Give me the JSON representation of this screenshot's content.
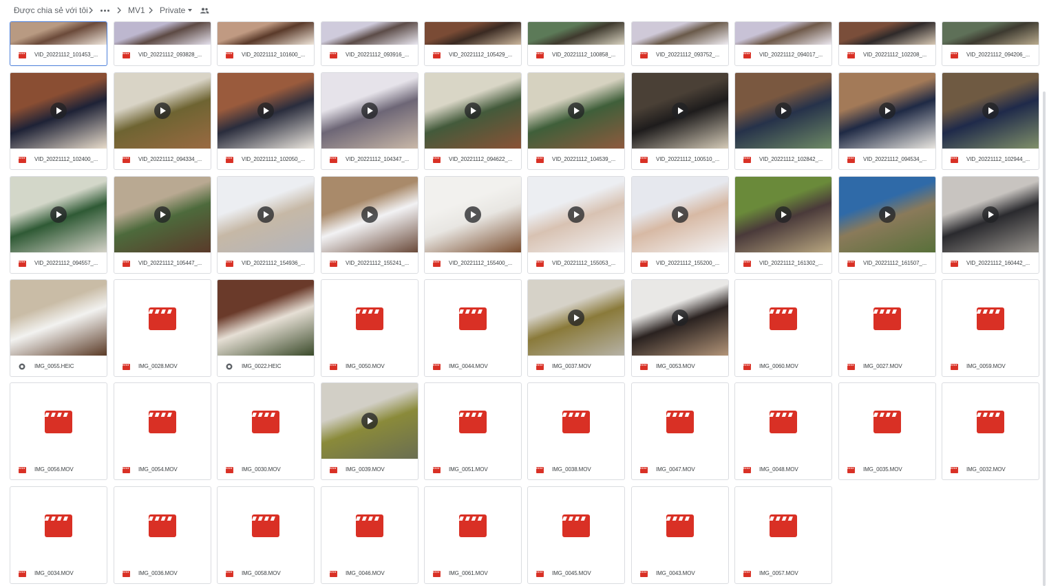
{
  "breadcrumb": {
    "shared": "Được chia sẻ với tôi",
    "folder1": "MV1",
    "folder2": "Private"
  },
  "rows": [
    [
      {
        "name": "VID_20221112_101453_...",
        "type": "video",
        "thumb": [
          "#b89a82",
          "#6b4a3a",
          "#f0e7dd"
        ],
        "selected": true
      },
      {
        "name": "VID_20221112_093828_...",
        "type": "video",
        "thumb": [
          "#bdb7cf",
          "#5d4a44",
          "#e6e2ee"
        ]
      },
      {
        "name": "VID_20221112_101600_...",
        "type": "video",
        "thumb": [
          "#c09a82",
          "#5a3a2a",
          "#f0e6da"
        ]
      },
      {
        "name": "VID_20221112_093916_...",
        "type": "video",
        "thumb": [
          "#cfcbdc",
          "#5c4c48",
          "#ebe9f2"
        ]
      },
      {
        "name": "VID_20221112_105429_...",
        "type": "video",
        "thumb": [
          "#7a4b35",
          "#3a2a22",
          "#cbb69c"
        ]
      },
      {
        "name": "VID_20221112_100858_...",
        "type": "video",
        "thumb": [
          "#5c7a58",
          "#3f3a2e",
          "#d8d2c0"
        ]
      },
      {
        "name": "VID_20221112_093752_...",
        "type": "video",
        "thumb": [
          "#cfc9d8",
          "#6a5a4a",
          "#f1eef4"
        ]
      },
      {
        "name": "VID_20221112_094017_...",
        "type": "video",
        "thumb": [
          "#c8c2d6",
          "#6f5a4a",
          "#ece8f0"
        ]
      },
      {
        "name": "VID_20221112_102208_...",
        "type": "video",
        "thumb": [
          "#7a4e3a",
          "#2f2a2a",
          "#d7c8b4"
        ]
      },
      {
        "name": "VID_20221112_094206_...",
        "type": "video",
        "thumb": [
          "#5e7058",
          "#3d3a30",
          "#b9ab8e"
        ]
      }
    ],
    [
      {
        "name": "VID_20221112_102400_...",
        "type": "video",
        "thumb": [
          "#8a4e33",
          "#1e2236",
          "#e8dccb"
        ]
      },
      {
        "name": "VID_20221112_094334_...",
        "type": "video",
        "thumb": [
          "#d9d4c6",
          "#6e6432",
          "#9a6a42"
        ]
      },
      {
        "name": "VID_20221112_102050_...",
        "type": "video",
        "thumb": [
          "#9a5b3d",
          "#2a2d3d",
          "#ece7df"
        ]
      },
      {
        "name": "VID_20221112_104347_...",
        "type": "video",
        "thumb": [
          "#e6e3ea",
          "#6d6676",
          "#c9b8a8"
        ]
      },
      {
        "name": "VID_20221112_094622_...",
        "type": "video",
        "thumb": [
          "#d9d6c6",
          "#435a3b",
          "#8a5236"
        ]
      },
      {
        "name": "VID_20221112_104539_...",
        "type": "video",
        "thumb": [
          "#d6d2c0",
          "#3f5f3a",
          "#8e5a3e"
        ]
      },
      {
        "name": "VID_20221112_100510_...",
        "type": "video",
        "thumb": [
          "#4a4036",
          "#1e1c1c",
          "#d5cbb8"
        ]
      },
      {
        "name": "VID_20221112_102842_...",
        "type": "video",
        "thumb": [
          "#7a5840",
          "#26324a",
          "#6e8a66"
        ]
      },
      {
        "name": "VID_20221112_094534_...",
        "type": "video",
        "thumb": [
          "#a37a58",
          "#1f2a45",
          "#e9e6e0"
        ]
      },
      {
        "name": "VID_20221112_102944_...",
        "type": "video",
        "thumb": [
          "#6f5a42",
          "#1f2a4a",
          "#80906a"
        ]
      }
    ],
    [
      {
        "name": "VID_20221112_094557_...",
        "type": "video",
        "thumb": [
          "#d3d7c9",
          "#2f5a35",
          "#d4d2c8"
        ]
      },
      {
        "name": "VID_20221112_105447_...",
        "type": "video",
        "thumb": [
          "#b9a992",
          "#4d6a3c",
          "#5a3a2a"
        ]
      },
      {
        "name": "VID_20221112_154936_...",
        "type": "video",
        "thumb": [
          "#eceef2",
          "#c6b8a6",
          "#b3b5bc"
        ]
      },
      {
        "name": "VID_20221112_155241_...",
        "type": "video",
        "thumb": [
          "#a98a6a",
          "#f2f2f4",
          "#6a4a3a"
        ]
      },
      {
        "name": "VID_20221112_155400_...",
        "type": "video",
        "thumb": [
          "#f2f1ee",
          "#e8e6e2",
          "#7a4e30"
        ]
      },
      {
        "name": "VID_20221112_155053_...",
        "type": "video",
        "thumb": [
          "#eceef2",
          "#d8c2b2",
          "#f3f3f5"
        ]
      },
      {
        "name": "VID_20221112_155200_...",
        "type": "video",
        "thumb": [
          "#e6e8ee",
          "#d7b9a4",
          "#f4f4f6"
        ]
      },
      {
        "name": "VID_20221112_161302_...",
        "type": "video",
        "thumb": [
          "#6a8a3a",
          "#4a3a3a",
          "#b8a680"
        ]
      },
      {
        "name": "VID_20221112_161507_...",
        "type": "video",
        "thumb": [
          "#2f6aa8",
          "#8a7a5a",
          "#58703a"
        ]
      },
      {
        "name": "VID_20221112_160442_...",
        "type": "video",
        "thumb": [
          "#c8c4c0",
          "#2a2a2e",
          "#9a9690"
        ]
      }
    ],
    [
      {
        "name": "IMG_0055.HEIC",
        "type": "image",
        "thumb": [
          "#c9bca6",
          "#f2f2f0",
          "#5a3a26"
        ]
      },
      {
        "name": "IMG_0028.MOV",
        "type": "placeholder"
      },
      {
        "name": "IMG_0022.HEIC",
        "type": "image",
        "thumb": [
          "#6a3a2a",
          "#e6dfd5",
          "#3a4a2a"
        ]
      },
      {
        "name": "IMG_0050.MOV",
        "type": "placeholder"
      },
      {
        "name": "IMG_0044.MOV",
        "type": "placeholder"
      },
      {
        "name": "IMG_0037.MOV",
        "type": "video",
        "thumb": [
          "#d6d2c8",
          "#8a7a3a",
          "#b6b2a6"
        ]
      },
      {
        "name": "IMG_0053.MOV",
        "type": "video",
        "thumb": [
          "#e9e8e6",
          "#2a2220",
          "#b29478"
        ]
      },
      {
        "name": "IMG_0060.MOV",
        "type": "placeholder"
      },
      {
        "name": "IMG_0027.MOV",
        "type": "placeholder"
      },
      {
        "name": "IMG_0059.MOV",
        "type": "placeholder"
      }
    ],
    [
      {
        "name": "IMG_0056.MOV",
        "type": "placeholder"
      },
      {
        "name": "IMG_0054.MOV",
        "type": "placeholder"
      },
      {
        "name": "IMG_0030.MOV",
        "type": "placeholder"
      },
      {
        "name": "IMG_0039.MOV",
        "type": "video",
        "thumb": [
          "#d2cfc6",
          "#8a8a3a",
          "#6a6e52"
        ]
      },
      {
        "name": "IMG_0051.MOV",
        "type": "placeholder"
      },
      {
        "name": "IMG_0038.MOV",
        "type": "placeholder"
      },
      {
        "name": "IMG_0047.MOV",
        "type": "placeholder"
      },
      {
        "name": "IMG_0048.MOV",
        "type": "placeholder"
      },
      {
        "name": "IMG_0035.MOV",
        "type": "placeholder"
      },
      {
        "name": "IMG_0032.MOV",
        "type": "placeholder"
      }
    ],
    [
      {
        "name": "IMG_0034.MOV",
        "type": "placeholder"
      },
      {
        "name": "IMG_0036.MOV",
        "type": "placeholder"
      },
      {
        "name": "IMG_0058.MOV",
        "type": "placeholder"
      },
      {
        "name": "IMG_0046.MOV",
        "type": "placeholder"
      },
      {
        "name": "IMG_0061.MOV",
        "type": "placeholder"
      },
      {
        "name": "IMG_0045.MOV",
        "type": "placeholder"
      },
      {
        "name": "IMG_0043.MOV",
        "type": "placeholder"
      },
      {
        "name": "IMG_0057.MOV",
        "type": "placeholder"
      }
    ]
  ],
  "colors": {
    "video_icon": "#d93025",
    "image_icon": "#5f6368",
    "border": "#dadce0",
    "selected_border": "#4a7ed9"
  }
}
